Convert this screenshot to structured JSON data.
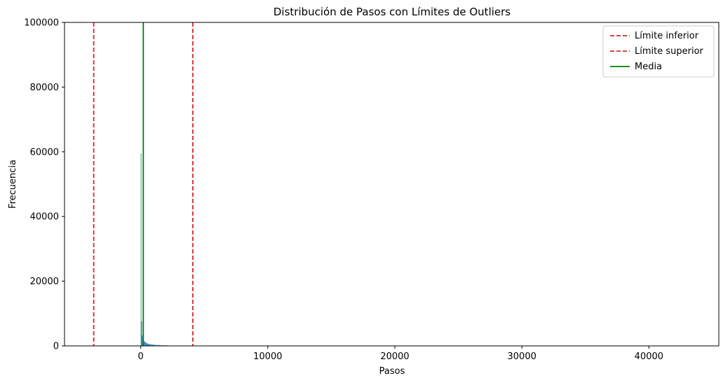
{
  "chart_data": {
    "type": "histogram",
    "title": "Distribución de Pasos con Límites de Outliers",
    "xlabel": "Pasos",
    "ylabel": "Frecuencia",
    "xlim": [
      -6000,
      45500
    ],
    "ylim": [
      0,
      100000
    ],
    "x_ticks": [
      0,
      10000,
      20000,
      30000,
      40000
    ],
    "y_ticks": [
      0,
      20000,
      40000,
      60000,
      80000,
      100000
    ],
    "grid": false,
    "legend_position": "top-right",
    "bar_color": "#1f77b4",
    "histogram": {
      "bins_x": [
        0,
        50,
        100,
        150,
        200,
        250,
        300,
        350,
        400,
        450,
        500,
        600,
        700,
        800,
        900,
        1000,
        1200,
        1400,
        1600,
        1800,
        2000,
        2300,
        2600,
        3000,
        3500,
        4000,
        4500,
        5000
      ],
      "counts": [
        59500,
        7600,
        3200,
        2400,
        1800,
        1500,
        1300,
        1100,
        950,
        850,
        700,
        600,
        520,
        450,
        400,
        350,
        300,
        260,
        220,
        200,
        160,
        120,
        100,
        80,
        60,
        40,
        30,
        20
      ],
      "bin_width": 50
    },
    "reference_lines": [
      {
        "name": "Límite inferior",
        "x": -3700,
        "color": "#d62728",
        "style": "dashed"
      },
      {
        "name": "Límite superior",
        "x": 4100,
        "color": "#d62728",
        "style": "dashed"
      },
      {
        "name": "Media",
        "x": 200,
        "color": "#008000",
        "style": "solid"
      }
    ]
  }
}
